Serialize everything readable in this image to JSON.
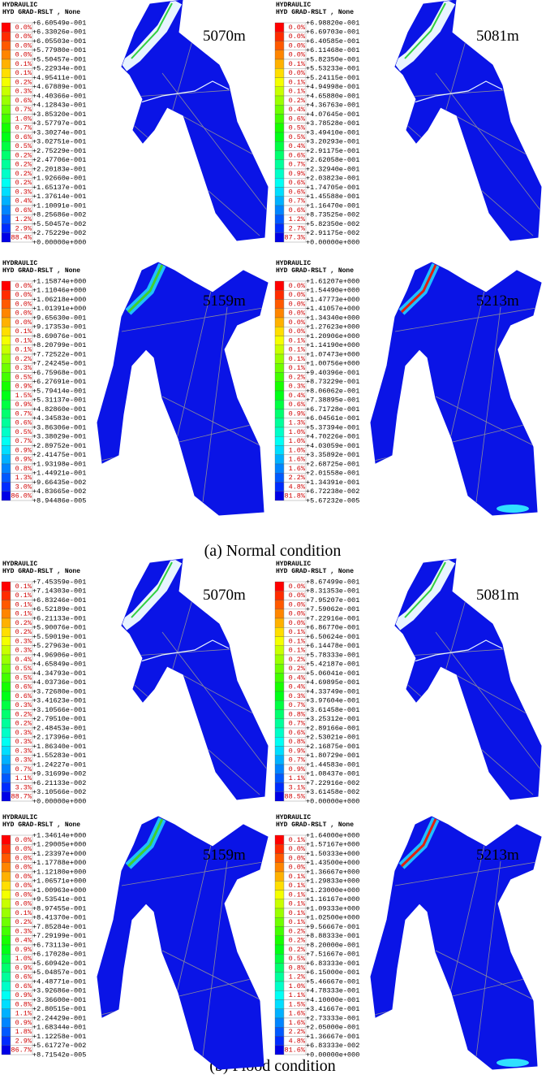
{
  "panels": [
    {
      "header": [
        "HYDRAULIC",
        "HYD GRAD-RSLT , None"
      ],
      "label": "5070m",
      "percents": [
        "0.0%",
        "0.0%",
        "0.0%",
        "0.0%",
        "0.1%",
        "0.1%",
        "0.2%",
        "0.3%",
        "0.6%",
        "0.7%",
        "1.0%",
        "0.7%",
        "0.6%",
        "0.5%",
        "0.2%",
        "0.2%",
        "0.2%",
        "0.2%",
        "0.3%",
        "0.4%",
        "0.6%",
        "1.2%",
        "2.9%",
        "88.4%"
      ],
      "values": [
        "+6.60549e-001",
        "+6.33026e-001",
        "+6.05503e-001",
        "+5.77980e-001",
        "+5.50457e-001",
        "+5.22934e-001",
        "+4.95411e-001",
        "+4.67889e-001",
        "+4.40366e-001",
        "+4.12843e-001",
        "+3.85320e-001",
        "+3.57797e-001",
        "+3.30274e-001",
        "+3.02751e-001",
        "+2.75229e-001",
        "+2.47706e-001",
        "+2.20183e-001",
        "+1.92660e-001",
        "+1.65137e-001",
        "+1.37614e-001",
        "+1.10091e-001",
        "+8.25686e-002",
        "+5.50457e-002",
        "+2.75229e-002",
        "+0.00000e+000"
      ]
    },
    {
      "header": [
        "HYDRAULIC",
        "HYD GRAD-RSLT , None"
      ],
      "label": "5081m",
      "percents": [
        "0.0%",
        "0.0%",
        "0.0%",
        "0.0%",
        "0.1%",
        "0.0%",
        "0.1%",
        "0.1%",
        "0.2%",
        "0.4%",
        "0.6%",
        "0.5%",
        "0.5%",
        "0.4%",
        "0.6%",
        "0.7%",
        "0.9%",
        "0.6%",
        "0.6%",
        "0.7%",
        "0.6%",
        "1.2%",
        "2.7%",
        "87.3%"
      ],
      "values": [
        "+6.98820e-001",
        "+6.69703e-001",
        "+6.40585e-001",
        "+6.11468e-001",
        "+5.82350e-001",
        "+5.53233e-001",
        "+5.24115e-001",
        "+4.94998e-001",
        "+4.65880e-001",
        "+4.36763e-001",
        "+4.07645e-001",
        "+3.78528e-001",
        "+3.49410e-001",
        "+3.20293e-001",
        "+2.91175e-001",
        "+2.62058e-001",
        "+2.32940e-001",
        "+2.03823e-001",
        "+1.74705e-001",
        "+1.45588e-001",
        "+1.16470e-001",
        "+8.73525e-002",
        "+5.82350e-002",
        "+2.91175e-002",
        "+0.00000e+000"
      ]
    },
    {
      "header": [
        "HYDRAULIC",
        "HYD GRAD-RSLT , None"
      ],
      "label": "5159m",
      "percents": [
        "0.0%",
        "0.0%",
        "0.0%",
        "0.0%",
        "0.0%",
        "0.1%",
        "0.1%",
        "0.1%",
        "0.2%",
        "0.3%",
        "0.5%",
        "0.9%",
        "1.5%",
        "0.9%",
        "0.7%",
        "0.6%",
        "0.5%",
        "0.7%",
        "0.9%",
        "0.9%",
        "0.8%",
        "1.3%",
        "3.0%",
        "86.0%"
      ],
      "values": [
        "+1.15874e+000",
        "+1.11046e+000",
        "+1.06218e+000",
        "+1.01391e+000",
        "+9.65630e-001",
        "+9.17353e-001",
        "+8.69076e-001",
        "+8.20799e-001",
        "+7.72522e-001",
        "+7.24245e-001",
        "+6.75968e-001",
        "+6.27691e-001",
        "+5.79414e-001",
        "+5.31137e-001",
        "+4.82860e-001",
        "+4.34583e-001",
        "+3.86306e-001",
        "+3.38029e-001",
        "+2.89752e-001",
        "+2.41475e-001",
        "+1.93198e-001",
        "+1.44921e-001",
        "+9.66435e-002",
        "+4.83665e-002",
        "+8.94486e-005"
      ]
    },
    {
      "header": [
        "HYDRAULIC",
        "HYD GRAD-RSLT , None"
      ],
      "label": "5213m",
      "percents": [
        "0.0%",
        "0.0%",
        "0.0%",
        "0.0%",
        "0.0%",
        "0.0%",
        "0.1%",
        "0.1%",
        "0.1%",
        "0.1%",
        "0.2%",
        "0.3%",
        "0.4%",
        "0.6%",
        "0.9%",
        "1.3%",
        "1.0%",
        "1.0%",
        "1.0%",
        "1.6%",
        "1.6%",
        "2.2%",
        "4.8%",
        "81.8%"
      ],
      "values": [
        "+1.61207e+000",
        "+1.54490e+000",
        "+1.47773e+000",
        "+1.41057e+000",
        "+1.34340e+000",
        "+1.27623e+000",
        "+1.20906e+000",
        "+1.14190e+000",
        "+1.07473e+000",
        "+1.00756e+000",
        "+9.40396e-001",
        "+8.73229e-001",
        "+8.06062e-001",
        "+7.38895e-001",
        "+6.71728e-001",
        "+6.04561e-001",
        "+5.37394e-001",
        "+4.70226e-001",
        "+4.03059e-001",
        "+3.35892e-001",
        "+2.68725e-001",
        "+2.01558e-001",
        "+1.34391e-001",
        "+6.72238e-002",
        "+5.67232e-005"
      ]
    },
    {
      "header": [
        "HYDRAULIC",
        "HYD GRAD-RSLT , None"
      ],
      "label": "5070m",
      "percents": [
        "0.1%",
        "0.1%",
        "0.1%",
        "0.1%",
        "0.2%",
        "0.2%",
        "0.3%",
        "0.3%",
        "0.4%",
        "0.5%",
        "0.5%",
        "0.6%",
        "0.6%",
        "0.3%",
        "0.2%",
        "0.2%",
        "0.3%",
        "0.3%",
        "0.3%",
        "0.3%",
        "0.7%",
        "1.1%",
        "3.3%",
        "88.7%"
      ],
      "values": [
        "+7.45359e-001",
        "+7.14303e-001",
        "+6.83246e-001",
        "+6.52189e-001",
        "+6.21133e-001",
        "+5.90076e-001",
        "+5.59019e-001",
        "+5.27963e-001",
        "+4.96906e-001",
        "+4.65849e-001",
        "+4.34793e-001",
        "+4.03736e-001",
        "+3.72680e-001",
        "+3.41623e-001",
        "+3.10566e-001",
        "+2.79510e-001",
        "+2.48453e-001",
        "+2.17396e-001",
        "+1.86340e-001",
        "+1.55283e-001",
        "+1.24227e-001",
        "+9.31699e-002",
        "+6.21133e-002",
        "+3.10566e-002",
        "+0.00000e+000"
      ]
    },
    {
      "header": [
        "HYDRAULIC",
        "HYD GRAD-RSLT , None"
      ],
      "label": "5081m",
      "percents": [
        "0.0%",
        "0.0%",
        "0.0%",
        "0.0%",
        "0.0%",
        "0.1%",
        "0.1%",
        "0.1%",
        "0.2%",
        "0.2%",
        "0.4%",
        "0.4%",
        "0.3%",
        "0.7%",
        "0.8%",
        "0.7%",
        "0.6%",
        "0.8%",
        "0.9%",
        "0.7%",
        "0.9%",
        "1.1%",
        "3.1%",
        "88.5%"
      ],
      "values": [
        "+8.67499e-001",
        "+8.31353e-001",
        "+7.95207e-001",
        "+7.59062e-001",
        "+7.22916e-001",
        "+6.86770e-001",
        "+6.50624e-001",
        "+6.14478e-001",
        "+5.78333e-001",
        "+5.42187e-001",
        "+5.06041e-001",
        "+4.69895e-001",
        "+4.33749e-001",
        "+3.97604e-001",
        "+3.61458e-001",
        "+3.25312e-001",
        "+2.89166e-001",
        "+2.53021e-001",
        "+2.16875e-001",
        "+1.80729e-001",
        "+1.44583e-001",
        "+1.08437e-001",
        "+7.22916e-002",
        "+3.61458e-002",
        "+0.00000e+000"
      ]
    },
    {
      "header": [
        "HYDRAULIC",
        "HYD GRAD-RSLT , None"
      ],
      "label": "5159m",
      "percents": [
        "0.0%",
        "0.0%",
        "0.0%",
        "0.0%",
        "0.0%",
        "0.0%",
        "0.0%",
        "0.0%",
        "0.1%",
        "0.2%",
        "0.3%",
        "0.4%",
        "0.9%",
        "1.0%",
        "0.9%",
        "0.6%",
        "0.6%",
        "0.9%",
        "0.8%",
        "1.1%",
        "0.9%",
        "1.8%",
        "2.9%",
        "86.7%"
      ],
      "values": [
        "+1.34614e+000",
        "+1.29005e+000",
        "+1.23397e+000",
        "+1.17788e+000",
        "+1.12180e+000",
        "+1.06571e+000",
        "+1.00963e+000",
        "+9.53541e-001",
        "+8.97455e-001",
        "+8.41370e-001",
        "+7.85284e-001",
        "+7.29199e-001",
        "+6.73113e-001",
        "+6.17028e-001",
        "+5.60942e-001",
        "+5.04857e-001",
        "+4.48771e-001",
        "+3.92686e-001",
        "+3.36600e-001",
        "+2.80515e-001",
        "+2.24429e-001",
        "+1.68344e-001",
        "+1.12258e-001",
        "+5.61727e-002",
        "+8.71542e-005"
      ]
    },
    {
      "header": [
        "HYDRAULIC",
        "HYD GRAD-RSLT , None"
      ],
      "label": "5213m",
      "percents": [
        "0.1%",
        "0.0%",
        "0.0%",
        "0.0%",
        "0.1%",
        "0.1%",
        "0.1%",
        "0.1%",
        "0.1%",
        "0.1%",
        "0.2%",
        "0.2%",
        "0.2%",
        "0.5%",
        "0.8%",
        "1.2%",
        "1.0%",
        "1.1%",
        "1.5%",
        "1.6%",
        "1.6%",
        "2.2%",
        "4.8%",
        "81.6%"
      ],
      "values": [
        "+1.64000e+000",
        "+1.57167e+000",
        "+1.50333e+000",
        "+1.43500e+000",
        "+1.36667e+000",
        "+1.29833e+000",
        "+1.23000e+000",
        "+1.16167e+000",
        "+1.09333e+000",
        "+1.02500e+000",
        "+9.56667e-001",
        "+8.88333e-001",
        "+8.20000e-001",
        "+7.51667e-001",
        "+6.83333e-001",
        "+6.15000e-001",
        "+5.46667e-001",
        "+4.78333e-001",
        "+4.10000e-001",
        "+3.41667e-001",
        "+2.73333e-001",
        "+2.05000e-001",
        "+1.36667e-001",
        "+6.83333e-002",
        "+0.00000e+000"
      ]
    }
  ],
  "captions": [
    "(a) Normal condition",
    "(b) Flood condition"
  ]
}
